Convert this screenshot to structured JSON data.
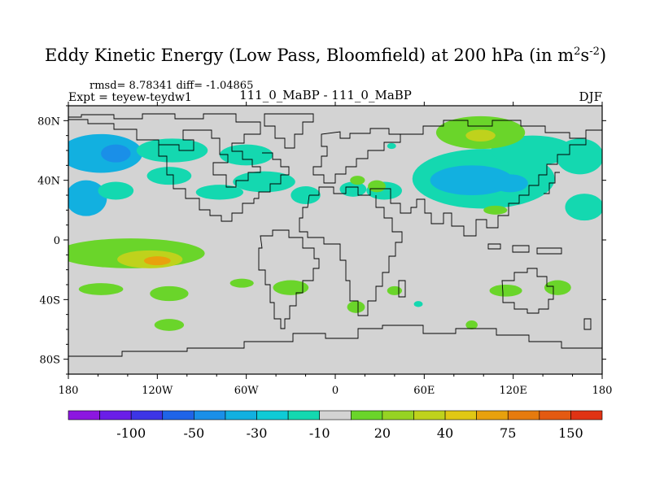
{
  "figure": {
    "title_main": "Eddy Kinetic Energy (Low Pass, Bloomfield) at 200 hPa (in m",
    "title_sup1": "2",
    "title_mid": "s",
    "title_sup2": "-2",
    "title_end": ")",
    "stats": "rmsd= 8.78341 diff= -1.04865",
    "experiment": "Expt = teyew-teydw1",
    "subtitle": "111_0_MaBP - 111_0_MaBP",
    "season": "DJF"
  },
  "colors": {
    "land_outline": "#000000",
    "background_zero": "#d3d3d3"
  },
  "chart_data": {
    "type": "heatmap",
    "title": "Eddy Kinetic Energy (Low Pass, Bloomfield) at 200 hPa (in m^2 s^-2)",
    "subtitle": "111_0_MaBP - 111_0_MaBP",
    "season": "DJF",
    "xlabel": "",
    "ylabel": "",
    "xlim": [
      -180,
      180
    ],
    "ylim": [
      -90,
      90
    ],
    "x_ticks": [
      {
        "value": -180,
        "label": "180"
      },
      {
        "value": -120,
        "label": "120W"
      },
      {
        "value": -60,
        "label": "60W"
      },
      {
        "value": 0,
        "label": "0"
      },
      {
        "value": 60,
        "label": "60E"
      },
      {
        "value": 120,
        "label": "120E"
      },
      {
        "value": 180,
        "label": "180"
      }
    ],
    "y_ticks": [
      {
        "value": 80,
        "label": "80N"
      },
      {
        "value": 40,
        "label": "40N"
      },
      {
        "value": 0,
        "label": "0"
      },
      {
        "value": -40,
        "label": "40S"
      },
      {
        "value": -80,
        "label": "80S"
      }
    ],
    "colorbar": {
      "colors": [
        "#8c17e0",
        "#6a1ee8",
        "#3d35e6",
        "#1f64e8",
        "#1a8fe8",
        "#12b0e0",
        "#0fcbd6",
        "#14d8b0",
        "#d3d3d3",
        "#6ad52a",
        "#96d323",
        "#bfd21c",
        "#e0c814",
        "#e8a10d",
        "#e67b0e",
        "#e45a12",
        "#e03314"
      ],
      "labels": [
        "-100",
        "-50",
        "-30",
        "-10",
        "20",
        "40",
        "75",
        "150"
      ],
      "label_slots": [
        2,
        4,
        6,
        8,
        10,
        12,
        14,
        16
      ]
    },
    "regions": [
      {
        "lon": -158,
        "lat": 58,
        "rx": 28,
        "ry": 13,
        "level": -30
      },
      {
        "lon": -148,
        "lat": 58,
        "rx": 10,
        "ry": 6,
        "level": -50
      },
      {
        "lon": -110,
        "lat": 60,
        "rx": 24,
        "ry": 8,
        "level": -10
      },
      {
        "lon": -168,
        "lat": 28,
        "rx": 14,
        "ry": 12,
        "level": -30
      },
      {
        "lon": -148,
        "lat": 33,
        "rx": 12,
        "ry": 6,
        "level": -10
      },
      {
        "lon": -112,
        "lat": 43,
        "rx": 15,
        "ry": 6,
        "level": -10
      },
      {
        "lon": -78,
        "lat": 32,
        "rx": 16,
        "ry": 5,
        "level": -10
      },
      {
        "lon": -48,
        "lat": 39,
        "rx": 21,
        "ry": 7,
        "level": -10
      },
      {
        "lon": -60,
        "lat": 57,
        "rx": 18,
        "ry": 7,
        "level": -10
      },
      {
        "lon": -20,
        "lat": 30,
        "rx": 10,
        "ry": 6,
        "level": -10
      },
      {
        "lon": 12,
        "lat": 34,
        "rx": 9,
        "ry": 5,
        "level": -10
      },
      {
        "lon": 33,
        "lat": 33,
        "rx": 12,
        "ry": 6,
        "level": -10
      },
      {
        "lon": 28,
        "lat": 36,
        "rx": 6,
        "ry": 4,
        "level": 20
      },
      {
        "lon": 15,
        "lat": 40,
        "rx": 5,
        "ry": 3,
        "level": 20
      },
      {
        "lon": 38,
        "lat": 63,
        "rx": 3,
        "ry": 2,
        "level": -10
      },
      {
        "lon": 100,
        "lat": 41,
        "rx": 48,
        "ry": 20,
        "level": -10
      },
      {
        "lon": 92,
        "lat": 40,
        "rx": 28,
        "ry": 10,
        "level": -30
      },
      {
        "lon": 118,
        "lat": 38,
        "rx": 12,
        "ry": 6,
        "level": -30
      },
      {
        "lon": 133,
        "lat": 60,
        "rx": 28,
        "ry": 10,
        "level": -10
      },
      {
        "lon": 165,
        "lat": 56,
        "rx": 16,
        "ry": 12,
        "level": -10
      },
      {
        "lon": 168,
        "lat": 22,
        "rx": 13,
        "ry": 9,
        "level": -10
      },
      {
        "lon": 98,
        "lat": 72,
        "rx": 30,
        "ry": 11,
        "level": 20
      },
      {
        "lon": 98,
        "lat": 70,
        "rx": 10,
        "ry": 4,
        "level": 40
      },
      {
        "lon": 108,
        "lat": 20,
        "rx": 8,
        "ry": 3,
        "level": 20
      },
      {
        "lon": -138,
        "lat": -9,
        "rx": 50,
        "ry": 10,
        "level": 20
      },
      {
        "lon": -125,
        "lat": -13,
        "rx": 22,
        "ry": 6,
        "level": 40
      },
      {
        "lon": -120,
        "lat": -14,
        "rx": 9,
        "ry": 3,
        "level": 75
      },
      {
        "lon": -158,
        "lat": -33,
        "rx": 15,
        "ry": 4,
        "level": 20
      },
      {
        "lon": -112,
        "lat": -36,
        "rx": 13,
        "ry": 5,
        "level": 20
      },
      {
        "lon": -112,
        "lat": -57,
        "rx": 10,
        "ry": 4,
        "level": 20
      },
      {
        "lon": -63,
        "lat": -29,
        "rx": 8,
        "ry": 3,
        "level": 20
      },
      {
        "lon": -30,
        "lat": -32,
        "rx": 12,
        "ry": 5,
        "level": 20
      },
      {
        "lon": 14,
        "lat": -45,
        "rx": 6,
        "ry": 4,
        "level": 20
      },
      {
        "lon": 40,
        "lat": -34,
        "rx": 5,
        "ry": 3,
        "level": 20
      },
      {
        "lon": 56,
        "lat": -43,
        "rx": 3,
        "ry": 2,
        "level": -10
      },
      {
        "lon": 115,
        "lat": -34,
        "rx": 11,
        "ry": 4,
        "level": 20
      },
      {
        "lon": 150,
        "lat": -32,
        "rx": 9,
        "ry": 5,
        "level": 20
      },
      {
        "lon": 92,
        "lat": -57,
        "rx": 4,
        "ry": 3,
        "level": 20
      }
    ]
  }
}
